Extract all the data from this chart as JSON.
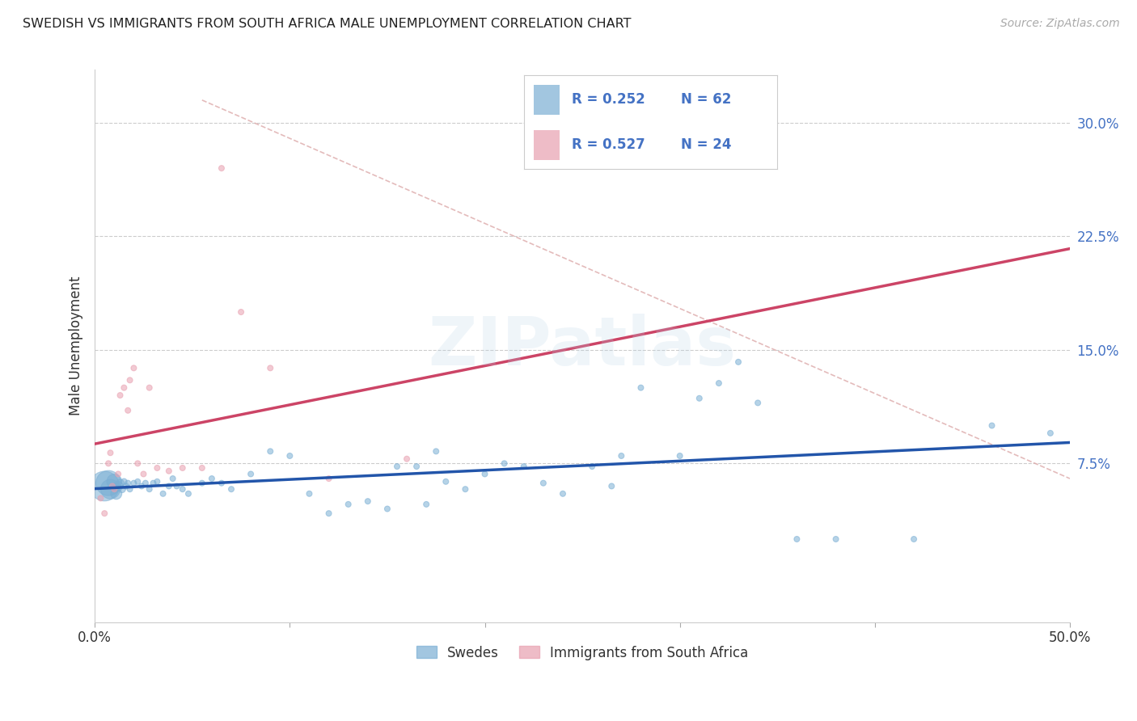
{
  "title": "SWEDISH VS IMMIGRANTS FROM SOUTH AFRICA MALE UNEMPLOYMENT CORRELATION CHART",
  "source": "Source: ZipAtlas.com",
  "ylabel": "Male Unemployment",
  "xlim": [
    0.0,
    0.5
  ],
  "ylim": [
    -0.03,
    0.335
  ],
  "swedes_color": "#7bafd4",
  "immigrants_color": "#e8a0b0",
  "swedes_line_color": "#2255aa",
  "immigrants_line_color": "#cc4466",
  "legend_text_color": "#4472c4",
  "background_color": "#ffffff",
  "grid_color": "#cccccc",
  "swedes_x": [
    0.005,
    0.007,
    0.008,
    0.01,
    0.011,
    0.012,
    0.013,
    0.014,
    0.015,
    0.016,
    0.017,
    0.018,
    0.02,
    0.022,
    0.024,
    0.026,
    0.028,
    0.03,
    0.032,
    0.035,
    0.038,
    0.04,
    0.042,
    0.045,
    0.048,
    0.055,
    0.06,
    0.065,
    0.07,
    0.08,
    0.09,
    0.1,
    0.11,
    0.12,
    0.13,
    0.14,
    0.15,
    0.155,
    0.165,
    0.17,
    0.175,
    0.18,
    0.19,
    0.2,
    0.21,
    0.22,
    0.23,
    0.24,
    0.255,
    0.265,
    0.27,
    0.28,
    0.3,
    0.31,
    0.32,
    0.33,
    0.34,
    0.36,
    0.38,
    0.42,
    0.46,
    0.49
  ],
  "swedes_y": [
    0.06,
    0.062,
    0.058,
    0.063,
    0.055,
    0.06,
    0.062,
    0.058,
    0.063,
    0.06,
    0.062,
    0.058,
    0.062,
    0.063,
    0.06,
    0.062,
    0.058,
    0.062,
    0.063,
    0.055,
    0.06,
    0.065,
    0.06,
    0.058,
    0.055,
    0.062,
    0.065,
    0.062,
    0.058,
    0.068,
    0.083,
    0.08,
    0.055,
    0.042,
    0.048,
    0.05,
    0.045,
    0.073,
    0.073,
    0.048,
    0.083,
    0.063,
    0.058,
    0.068,
    0.075,
    0.073,
    0.062,
    0.055,
    0.073,
    0.06,
    0.08,
    0.125,
    0.08,
    0.118,
    0.128,
    0.142,
    0.115,
    0.025,
    0.025,
    0.025,
    0.1,
    0.095
  ],
  "swedes_size": [
    700,
    500,
    300,
    180,
    100,
    70,
    50,
    40,
    30,
    28,
    26,
    25,
    25,
    25,
    25,
    25,
    25,
    25,
    25,
    25,
    25,
    25,
    25,
    25,
    25,
    25,
    25,
    25,
    25,
    25,
    25,
    25,
    25,
    25,
    25,
    25,
    25,
    25,
    25,
    25,
    25,
    25,
    25,
    25,
    25,
    25,
    25,
    25,
    25,
    25,
    25,
    25,
    25,
    25,
    25,
    25,
    25,
    25,
    25,
    25,
    25,
    25
  ],
  "immigrants_x": [
    0.003,
    0.005,
    0.007,
    0.008,
    0.009,
    0.01,
    0.012,
    0.013,
    0.015,
    0.017,
    0.018,
    0.02,
    0.022,
    0.025,
    0.028,
    0.032,
    0.038,
    0.045,
    0.055,
    0.065,
    0.075,
    0.09,
    0.12,
    0.16
  ],
  "immigrants_y": [
    0.052,
    0.042,
    0.075,
    0.082,
    0.06,
    0.058,
    0.068,
    0.12,
    0.125,
    0.11,
    0.13,
    0.138,
    0.075,
    0.068,
    0.125,
    0.072,
    0.07,
    0.072,
    0.072,
    0.27,
    0.175,
    0.138,
    0.065,
    0.078
  ],
  "immigrants_size": [
    25,
    25,
    25,
    25,
    25,
    25,
    25,
    25,
    25,
    25,
    25,
    25,
    25,
    25,
    25,
    25,
    25,
    25,
    25,
    25,
    25,
    25,
    25,
    25
  ],
  "diag_line_start_x": 0.055,
  "diag_line_start_y": 0.315,
  "diag_line_end_x": 0.5,
  "diag_line_end_y": 0.065
}
